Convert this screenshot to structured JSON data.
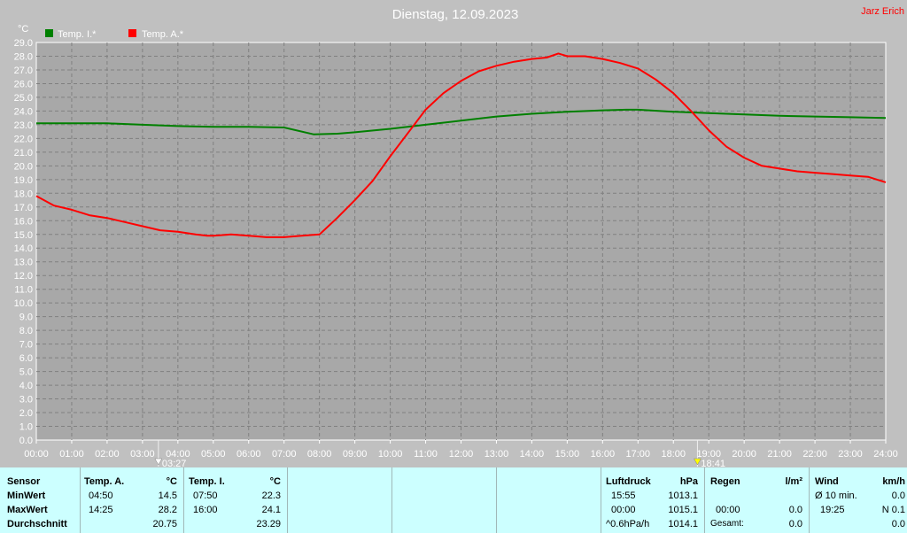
{
  "header": {
    "title": "Dienstag, 12.09.2023",
    "author": "Jarz Erich",
    "unit": "°C"
  },
  "chart_data": {
    "type": "line",
    "title": "Dienstag, 12.09.2023",
    "ylabel": "°C",
    "ylim": [
      0,
      29
    ],
    "xlim": [
      0,
      24
    ],
    "grid": true,
    "legend_position": "top-left",
    "y_ticks": [
      "0.0",
      "1.0",
      "2.0",
      "3.0",
      "4.0",
      "5.0",
      "6.0",
      "7.0",
      "8.0",
      "9.0",
      "10.0",
      "11.0",
      "12.0",
      "13.0",
      "14.0",
      "15.0",
      "16.0",
      "17.0",
      "18.0",
      "19.0",
      "20.0",
      "21.0",
      "22.0",
      "23.0",
      "24.0",
      "25.0",
      "26.0",
      "27.0",
      "28.0",
      "29.0"
    ],
    "x_ticks": [
      "00:00",
      "01:00",
      "02:00",
      "03:00",
      "04:00",
      "05:00",
      "06:00",
      "07:00",
      "08:00",
      "09:00",
      "10:00",
      "11:00",
      "12:00",
      "13:00",
      "14:00",
      "15:00",
      "16:00",
      "17:00",
      "18:00",
      "19:00",
      "20:00",
      "21:00",
      "22:00",
      "23:00",
      "24:00"
    ],
    "markers": [
      {
        "label": "03:27",
        "x": 3.45,
        "color": "#ffffff"
      },
      {
        "label": "18:41",
        "x": 18.68,
        "color": "#ffff00"
      }
    ],
    "series": [
      {
        "name": "Temp. I.*",
        "color": "#008000",
        "x": [
          0,
          1,
          2,
          3,
          4,
          5,
          6,
          7,
          7.83,
          8.5,
          9,
          10,
          11,
          12,
          13,
          14,
          15,
          16,
          16.67,
          17,
          18,
          19,
          20,
          21,
          22,
          23,
          24
        ],
        "y": [
          23.1,
          23.1,
          23.1,
          23.0,
          22.9,
          22.85,
          22.85,
          22.8,
          22.3,
          22.35,
          22.45,
          22.7,
          23.0,
          23.3,
          23.6,
          23.8,
          23.95,
          24.05,
          24.1,
          24.1,
          23.95,
          23.85,
          23.75,
          23.65,
          23.6,
          23.55,
          23.5
        ]
      },
      {
        "name": "Temp. A.*",
        "color": "#ff0000",
        "x": [
          0,
          0.5,
          1,
          1.5,
          2,
          2.5,
          3,
          3.5,
          4,
          4.5,
          4.83,
          5,
          5.5,
          6,
          6.5,
          7,
          7.5,
          8,
          8.5,
          9,
          9.5,
          10,
          10.5,
          11,
          11.5,
          12,
          12.5,
          13,
          13.5,
          14,
          14.42,
          14.75,
          15,
          15.5,
          16,
          16.5,
          17,
          17.5,
          18,
          18.5,
          19,
          19.5,
          20,
          20.5,
          21,
          21.5,
          22,
          22.5,
          23,
          23.5,
          24
        ],
        "y": [
          17.8,
          17.1,
          16.8,
          16.4,
          16.2,
          15.9,
          15.6,
          15.3,
          15.2,
          15.0,
          14.9,
          14.9,
          15.0,
          14.9,
          14.8,
          14.8,
          14.9,
          15.0,
          16.2,
          17.5,
          18.9,
          20.7,
          22.4,
          24.1,
          25.3,
          26.2,
          26.9,
          27.3,
          27.6,
          27.8,
          27.9,
          28.2,
          28.0,
          28.0,
          27.8,
          27.5,
          27.1,
          26.3,
          25.3,
          24.0,
          22.6,
          21.4,
          20.6,
          20.0,
          19.8,
          19.6,
          19.5,
          19.4,
          19.3,
          19.2,
          18.8
        ]
      }
    ]
  },
  "stats": {
    "sensor": {
      "header": "Sensor",
      "rows": [
        "MinWert",
        "MaxWert",
        "Durchschnitt"
      ]
    },
    "temp_a": {
      "header": "Temp. A.",
      "unit": "°C",
      "min_time": "04:50",
      "min_val": "14.5",
      "max_time": "14:25",
      "max_val": "28.2",
      "avg": "20.75"
    },
    "temp_i": {
      "header": "Temp. I.",
      "unit": "°C",
      "min_time": "07:50",
      "min_val": "22.3",
      "max_time": "16:00",
      "max_val": "24.1",
      "avg": "23.29"
    },
    "pressure": {
      "header": "Luftdruck",
      "unit": "hPa",
      "r1_label": "15:55",
      "r1_val": "1013.1",
      "r2_label": "00:00",
      "r2_val": "1015.1",
      "r3_label": "^0.6hPa/h",
      "r3_val": "1014.1"
    },
    "rain": {
      "header": "Regen",
      "unit": "l/m²",
      "r2_label": "00:00",
      "r2_val": "0.0",
      "r3_label": "Gesamt:",
      "r3_val": "0.0"
    },
    "wind": {
      "header": "Wind",
      "unit": "km/h",
      "r1_label": "Ø 10 min.",
      "r1_val": "0.0",
      "r2_label": "19:25",
      "r2_val": "N 0.1",
      "r3_val": "0.0"
    }
  }
}
